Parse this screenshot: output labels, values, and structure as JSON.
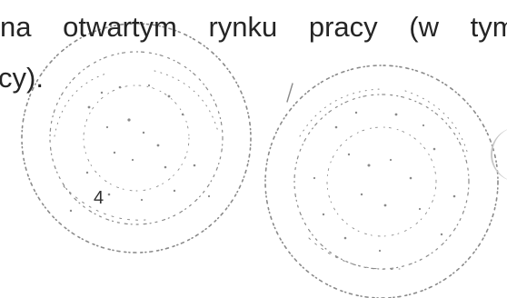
{
  "document": {
    "line1": "na otwartym rynku pracy (w tym",
    "line2": "cy).",
    "page_number": "4"
  },
  "stamps": [
    {
      "kind": "official-round-seal",
      "ink": "#707070"
    },
    {
      "kind": "official-round-seal",
      "ink": "#707070"
    }
  ]
}
